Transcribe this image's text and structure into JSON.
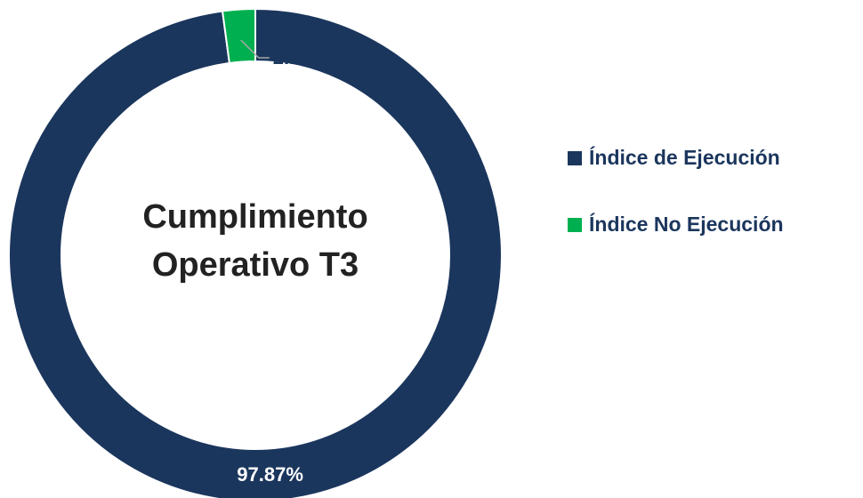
{
  "chart_data": {
    "type": "donut",
    "center_text": [
      "Cumplimiento",
      "Operativo T3"
    ],
    "categories": [
      "Índice de Ejecución",
      "Índice No Ejecución"
    ],
    "values": [
      97.87,
      2.13
    ],
    "value_labels": [
      "97.87%",
      "2.13%"
    ],
    "colors": [
      "#1b365d",
      "#00b050"
    ]
  }
}
